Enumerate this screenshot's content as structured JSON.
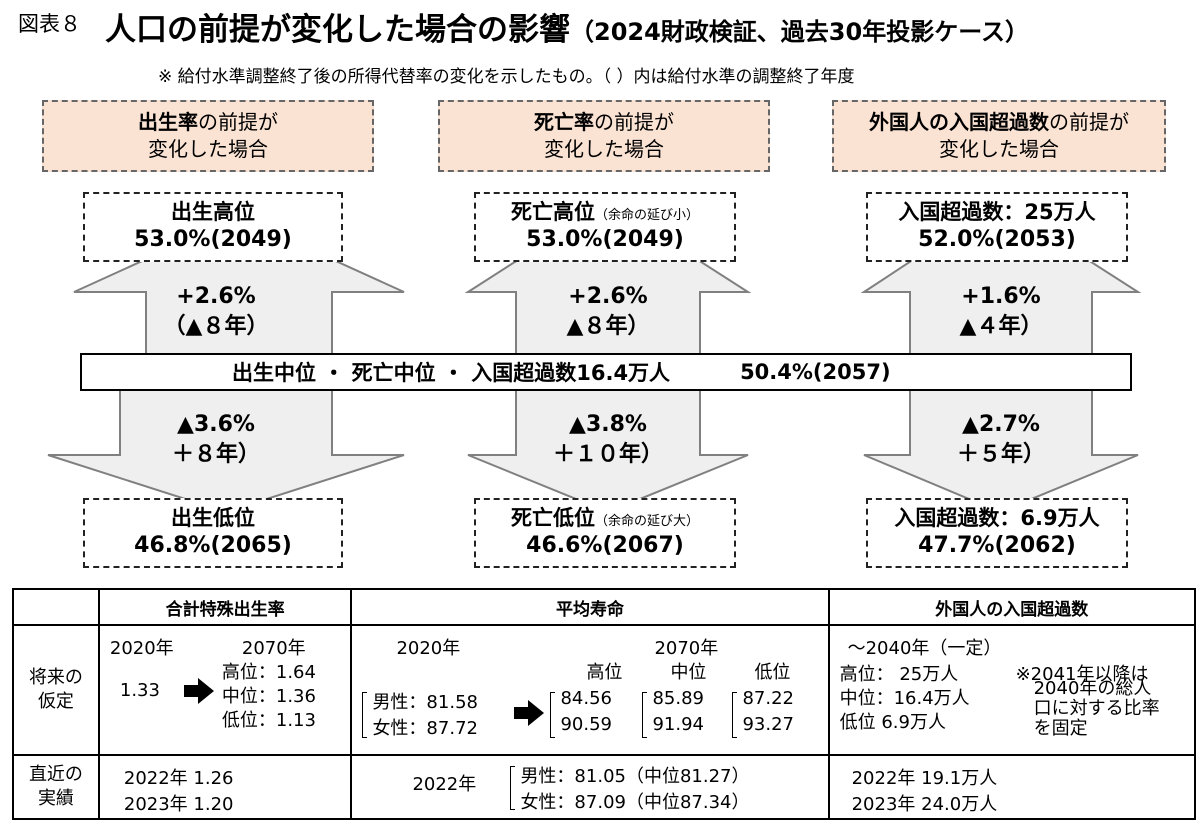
{
  "figure_label": "図表８",
  "title": "人口の前提が変化した場合の影響",
  "title_sub": "（2024財政検証、過去30年投影ケース）",
  "note": "※  給付水準調整終了後の所得代替率の変化を示したもの。（  ）内は給付水準の調整終了年度",
  "columns": [
    {
      "head_bold": "出生率",
      "head_rest": "の前提が",
      "head_line2": "変化した場合",
      "high_name": "出生高位",
      "high_note": "",
      "high_value": "53.0%(2049)",
      "up_line1": "+2.6%",
      "up_line2": "（▲８年）",
      "down_line1": "▲3.6%",
      "down_line2": "＋８年）",
      "low_name": "出生低位",
      "low_note": "",
      "low_value": "46.8%(2065)"
    },
    {
      "head_bold": "死亡率",
      "head_rest": "の前提が",
      "head_line2": "変化した場合",
      "high_name": "死亡高位",
      "high_note": "（余命の延び小）",
      "high_value": "53.0%(2049)",
      "up_line1": "+2.6%",
      "up_line2": "▲８年）",
      "down_line1": "▲3.8%",
      "down_line2": "＋１０年）",
      "low_name": "死亡低位",
      "low_note": "（余命の延び大）",
      "low_value": "46.6%(2067)"
    },
    {
      "head_bold": "外国人の入国超過数",
      "head_rest": "の前提が",
      "head_line2": "変化した場合",
      "high_name": "入国超過数：25万人",
      "high_note": "",
      "high_value": "52.0%(2053)",
      "up_line1": "+1.6%",
      "up_line2": "▲４年）",
      "down_line1": "▲2.7%",
      "down_line2": "＋５年）",
      "low_name": "入国超過数：6.9万人",
      "low_note": "",
      "low_value": "47.7%(2062)"
    }
  ],
  "center": {
    "label": "出生中位  ・  死亡中位  ・  入国超過数16.4万人",
    "value": "50.4%(2057)"
  },
  "table": {
    "headers": [
      "合計特殊出生率",
      "平均寿命",
      "外国人の入国超過数"
    ],
    "row1_label": [
      "将来の",
      "仮定"
    ],
    "row2_label": [
      "直近の",
      "実績"
    ],
    "fertility": {
      "y2020": "2020年",
      "y2070": "2070年",
      "base": "1.33",
      "high": "高位：1.64",
      "mid": "中位：1.36",
      "low": "低位：1.13",
      "recent1": "2022年  1.26",
      "recent2": "2023年  1.20"
    },
    "life": {
      "y2020": "2020年",
      "y2070": "2070年",
      "col_high": "高位",
      "col_mid": "中位",
      "col_low": "低位",
      "male_2020": "男性：81.58",
      "female_2020": "女性：87.72",
      "high_m": "84.56",
      "high_f": "90.59",
      "mid_m": "85.89",
      "mid_f": "91.94",
      "low_m": "87.22",
      "low_f": "93.27",
      "recent_year": "2022年",
      "recent_male": "男性：81.05（中位81.27）",
      "recent_female": "女性：87.09（中位87.34）"
    },
    "migration": {
      "period": "～2040年（一定）",
      "high": "高位：  25万人",
      "mid": "中位：16.4万人",
      "low": "低位      6.9万人",
      "note1": "※2041年以降は",
      "note2": "2040年の総人",
      "note3": "口に対する比率",
      "note4": "を固定",
      "recent1": "2022年     19.1万人",
      "recent2": "2023年     24.0万人"
    }
  },
  "colors": {
    "head_fill": "#fbe3d4",
    "arrow_fill": "#efefef",
    "arrow_stroke": "#808080",
    "pointer_arrow": "#000000"
  }
}
